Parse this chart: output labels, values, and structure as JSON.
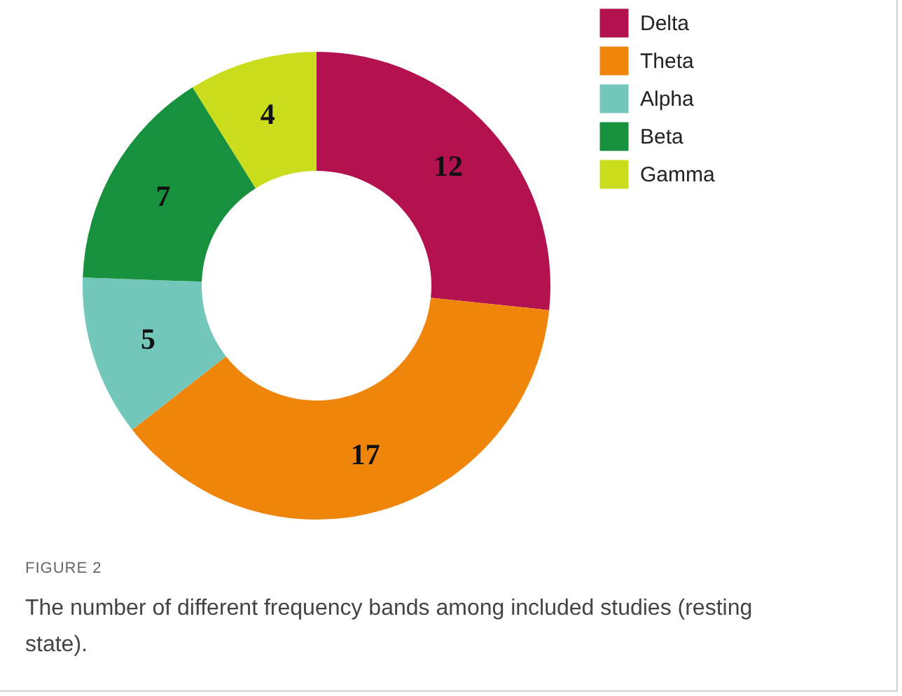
{
  "chart_data": {
    "type": "donut",
    "categories": [
      "Delta",
      "Theta",
      "Alpha",
      "Beta",
      "Gamma"
    ],
    "values": [
      12,
      17,
      5,
      7,
      4
    ],
    "colors": [
      "#b3114f",
      "#f0850c",
      "#72c6ba",
      "#17913d",
      "#c9dd1c"
    ],
    "data_labels": true,
    "legend": "top right",
    "annotations": [
      "FIGURE 2",
      "The number of different frequency bands among included studies (resting state)."
    ]
  }
}
